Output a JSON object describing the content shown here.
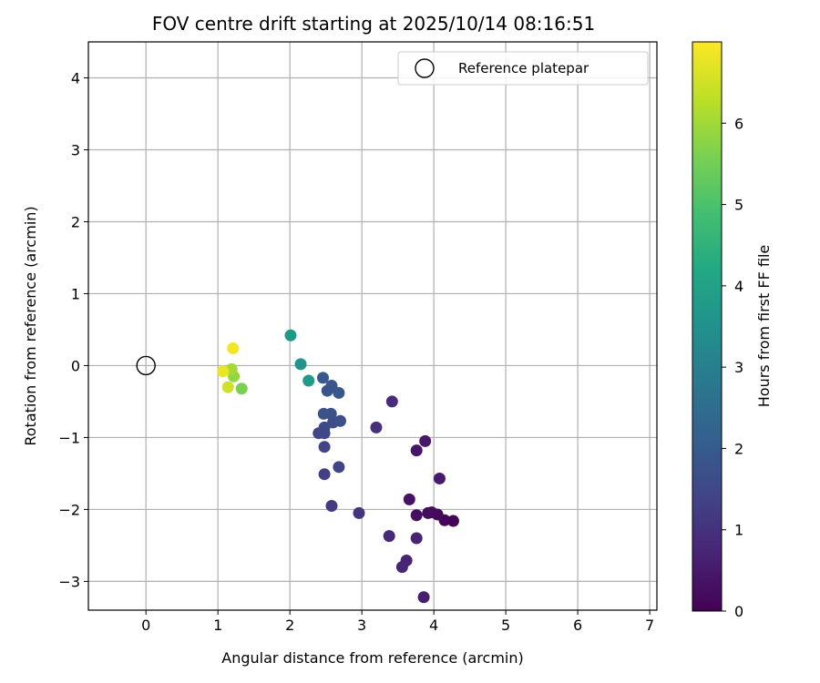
{
  "chart_data": {
    "type": "scatter",
    "title": "FOV centre drift starting at 2025/10/14 08:16:51",
    "xlabel": "Angular distance from reference (arcmin)",
    "ylabel": "Rotation from reference (arcmin)",
    "xlim": [
      -0.8,
      7.1
    ],
    "ylim": [
      -3.4,
      4.5
    ],
    "xticks": [
      0,
      1,
      2,
      3,
      4,
      5,
      6,
      7
    ],
    "yticks": [
      -3,
      -2,
      -1,
      0,
      1,
      2,
      3,
      4
    ],
    "xtick_labels": [
      "0",
      "1",
      "2",
      "3",
      "4",
      "5",
      "6",
      "7"
    ],
    "ytick_labels": [
      "−3",
      "−2",
      "−1",
      "0",
      "1",
      "2",
      "3",
      "4"
    ],
    "grid": true,
    "legend": {
      "label": "Reference platepar",
      "placement": "top-right"
    },
    "reference_point": {
      "x": 0,
      "y": 0
    },
    "colorbar": {
      "label": "Hours from first FF file",
      "range": [
        0,
        7.0
      ],
      "ticks": [
        0,
        1,
        2,
        3,
        4,
        5,
        6
      ],
      "tick_labels": [
        "0",
        "1",
        "2",
        "3",
        "4",
        "5",
        "6"
      ],
      "colormap": [
        "#440154",
        "#482475",
        "#414487",
        "#355f8d",
        "#2a788e",
        "#21918c",
        "#22a884",
        "#44bf70",
        "#7ad151",
        "#bddf26",
        "#fde725"
      ]
    },
    "points": [
      {
        "x": 4.27,
        "y": -2.16,
        "hours": 0.05
      },
      {
        "x": 4.15,
        "y": -2.15,
        "hours": 0.1
      },
      {
        "x": 4.05,
        "y": -2.07,
        "hours": 0.15
      },
      {
        "x": 3.97,
        "y": -2.04,
        "hours": 0.2
      },
      {
        "x": 3.92,
        "y": -2.05,
        "hours": 0.25
      },
      {
        "x": 3.76,
        "y": -2.08,
        "hours": 0.3
      },
      {
        "x": 3.66,
        "y": -1.86,
        "hours": 0.35
      },
      {
        "x": 3.76,
        "y": -1.18,
        "hours": 0.4
      },
      {
        "x": 3.88,
        "y": -1.05,
        "hours": 0.45
      },
      {
        "x": 4.08,
        "y": -1.57,
        "hours": 0.5
      },
      {
        "x": 3.86,
        "y": -3.22,
        "hours": 0.6
      },
      {
        "x": 3.76,
        "y": -2.4,
        "hours": 0.65
      },
      {
        "x": 3.62,
        "y": -2.71,
        "hours": 0.7
      },
      {
        "x": 3.56,
        "y": -2.8,
        "hours": 0.75
      },
      {
        "x": 3.38,
        "y": -2.37,
        "hours": 0.8
      },
      {
        "x": 3.42,
        "y": -0.5,
        "hours": 0.9
      },
      {
        "x": 3.2,
        "y": -0.86,
        "hours": 0.95
      },
      {
        "x": 2.96,
        "y": -2.05,
        "hours": 1.05
      },
      {
        "x": 2.58,
        "y": -1.95,
        "hours": 1.2
      },
      {
        "x": 2.48,
        "y": -1.51,
        "hours": 1.3
      },
      {
        "x": 2.68,
        "y": -1.41,
        "hours": 1.35
      },
      {
        "x": 2.48,
        "y": -1.13,
        "hours": 1.4
      },
      {
        "x": 2.4,
        "y": -0.94,
        "hours": 1.45
      },
      {
        "x": 2.48,
        "y": -0.94,
        "hours": 1.5
      },
      {
        "x": 2.48,
        "y": -0.86,
        "hours": 1.55
      },
      {
        "x": 2.6,
        "y": -0.79,
        "hours": 1.6
      },
      {
        "x": 2.7,
        "y": -0.77,
        "hours": 1.65
      },
      {
        "x": 2.57,
        "y": -0.67,
        "hours": 1.7
      },
      {
        "x": 2.47,
        "y": -0.67,
        "hours": 1.75
      },
      {
        "x": 2.52,
        "y": -0.35,
        "hours": 1.8
      },
      {
        "x": 2.58,
        "y": -0.28,
        "hours": 1.85
      },
      {
        "x": 2.68,
        "y": -0.38,
        "hours": 1.9
      },
      {
        "x": 2.46,
        "y": -0.17,
        "hours": 1.95
      },
      {
        "x": 2.26,
        "y": -0.21,
        "hours": 3.8
      },
      {
        "x": 2.15,
        "y": 0.02,
        "hours": 3.6
      },
      {
        "x": 2.01,
        "y": 0.42,
        "hours": 3.75
      },
      {
        "x": 1.33,
        "y": -0.32,
        "hours": 5.6
      },
      {
        "x": 1.22,
        "y": -0.15,
        "hours": 5.85
      },
      {
        "x": 1.19,
        "y": -0.05,
        "hours": 6.05
      },
      {
        "x": 1.14,
        "y": -0.3,
        "hours": 6.5
      },
      {
        "x": 1.07,
        "y": -0.08,
        "hours": 6.8
      },
      {
        "x": 1.21,
        "y": 0.24,
        "hours": 6.9
      }
    ]
  }
}
